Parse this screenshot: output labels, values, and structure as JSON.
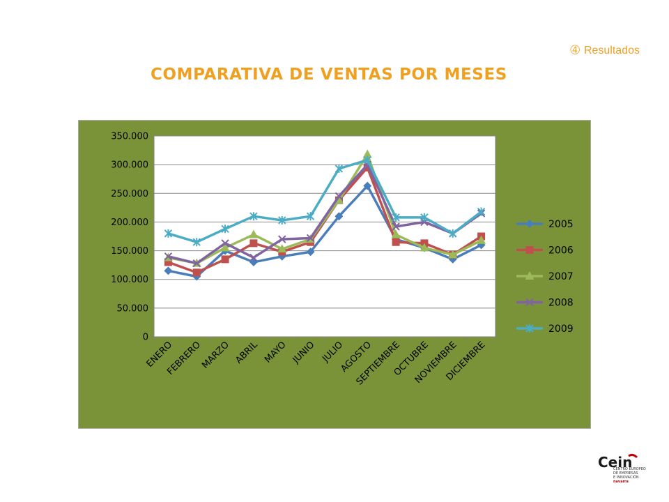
{
  "header": {
    "section_bullet": "➃",
    "section_label": "Resultados",
    "title": "COMPARATIVA DE VENTAS POR MESES"
  },
  "logo": {
    "name": "Cein",
    "line1": "CENTRO EUROPEO",
    "line2": "DE EMPRESAS",
    "line3": "E INNOVACIÓN",
    "line4": "navarra",
    "icon": "cein-logo"
  },
  "colors": {
    "accent": "#f0a020",
    "chart_background": "#7a9339",
    "plot_background": "#ffffff"
  },
  "chart_data": {
    "type": "line",
    "title": "",
    "xlabel": "",
    "ylabel": "",
    "ylim": [
      0,
      350000
    ],
    "yticks": [
      0,
      50000,
      100000,
      150000,
      200000,
      250000,
      300000,
      350000
    ],
    "ytick_labels": [
      "0",
      "50.000",
      "100.000",
      "150.000",
      "200.000",
      "250.000",
      "300.000",
      "350.000"
    ],
    "grid": true,
    "legend_position": "right",
    "categories": [
      "ENERO",
      "FEBRERO",
      "MARZO",
      "ABRIL",
      "MAYO",
      "JUNIO",
      "JULIO",
      "AGOSTO",
      "SEPTIEMBRE",
      "OCTUBRE",
      "NOVIEMBRE",
      "DICIEMBRE"
    ],
    "series": [
      {
        "name": "2005",
        "color": "#4a7ebb",
        "marker": "diamond",
        "values": [
          115000,
          105000,
          150000,
          130000,
          140000,
          148000,
          210000,
          263000,
          170000,
          155000,
          135000,
          160000
        ]
      },
      {
        "name": "2006",
        "color": "#c0504d",
        "marker": "square",
        "values": [
          130000,
          112000,
          135000,
          163000,
          148000,
          165000,
          238000,
          295000,
          165000,
          163000,
          143000,
          175000
        ]
      },
      {
        "name": "2007",
        "color": "#9bbb59",
        "marker": "triangle",
        "values": [
          138000,
          128000,
          155000,
          178000,
          153000,
          170000,
          238000,
          318000,
          178000,
          155000,
          143000,
          168000
        ]
      },
      {
        "name": "2008",
        "color": "#8064a2",
        "marker": "x",
        "values": [
          140000,
          128000,
          163000,
          138000,
          170000,
          172000,
          245000,
          300000,
          192000,
          200000,
          180000,
          215000
        ]
      },
      {
        "name": "2009",
        "color": "#4bacc6",
        "marker": "star",
        "values": [
          180000,
          165000,
          188000,
          210000,
          203000,
          210000,
          293000,
          308000,
          208000,
          208000,
          180000,
          218000
        ]
      }
    ]
  }
}
